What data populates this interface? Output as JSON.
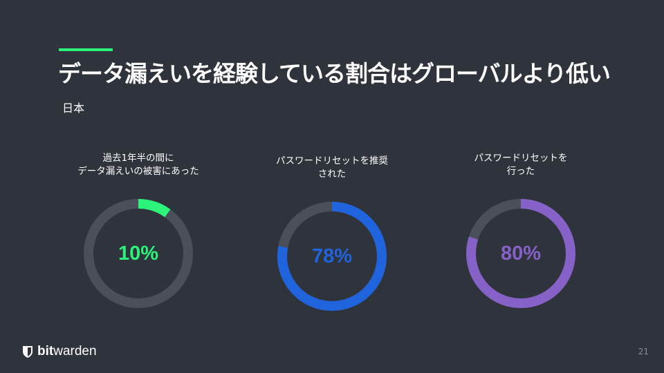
{
  "slide": {
    "title": "データ漏えいを経験している割合はグローバルより低い",
    "subtitle": "日本",
    "page_number": "21"
  },
  "colors": {
    "background": "#2f333b",
    "track": "#4a4f5a",
    "green": "#2cf37a",
    "blue": "#1f63dd",
    "purple": "#8662c8"
  },
  "stats": [
    {
      "label_lines": [
        "過去1年半の間に",
        "データ漏えいの被害にあった"
      ],
      "value": "10%",
      "percent": 10,
      "color": "#2cf37a"
    },
    {
      "label_lines": [
        "パスワードリセットを推奨",
        "された"
      ],
      "value": "78%",
      "percent": 78,
      "color": "#1f63dd"
    },
    {
      "label_lines": [
        "パスワードリセットを",
        "行った"
      ],
      "value": "80%",
      "percent": 80,
      "color": "#8662c8"
    }
  ],
  "logo": {
    "bold": "bit",
    "regular": "warden",
    "icon": "shield-icon"
  }
}
